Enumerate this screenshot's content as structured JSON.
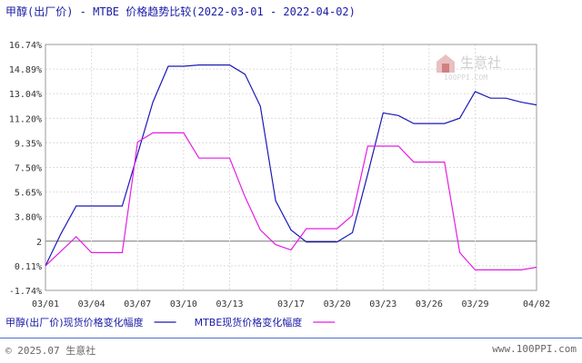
{
  "page": {
    "title": "甲醇(出厂价) - MTBE 价格趋势比较(2022-03-01 - 2022-04-02)",
    "footer_left": "© 2025.07 生意社",
    "footer_right": "www.100PPI.com",
    "watermark_text": "生意社",
    "watermark_sub": "100PPI.COM"
  },
  "chart_data": {
    "type": "line",
    "title": "甲醇(出厂价) - MTBE 价格趋势比较(2022-03-01 - 2022-04-02)",
    "xlabel": "",
    "ylabel": "",
    "x_ticks": [
      "03/01",
      "03/04",
      "03/07",
      "03/10",
      "03/13",
      "03/17",
      "03/20",
      "03/23",
      "03/26",
      "03/29",
      "04/02"
    ],
    "y_ticks": [
      "16.74%",
      "14.89%",
      "13.04%",
      "11.20%",
      "9.35%",
      "7.50%",
      "5.65%",
      "3.80%",
      "2",
      "0.11%",
      "-1.74%"
    ],
    "ylim": [
      -1.74,
      16.74
    ],
    "reference_line": 2,
    "grid": true,
    "legend_position": "bottom-left",
    "series": [
      {
        "name": "甲醇(出厂价)现货价格变化幅度",
        "color": "#1a1ab5",
        "points": [
          [
            "03/01",
            0.11
          ],
          [
            "03/02",
            2.5
          ],
          [
            "03/03",
            4.6
          ],
          [
            "03/04",
            4.6
          ],
          [
            "03/05",
            4.6
          ],
          [
            "03/06",
            4.6
          ],
          [
            "03/07",
            8.5
          ],
          [
            "03/08",
            12.4
          ],
          [
            "03/09",
            15.1
          ],
          [
            "03/10",
            15.1
          ],
          [
            "03/11",
            15.2
          ],
          [
            "03/12",
            15.2
          ],
          [
            "03/13",
            15.2
          ],
          [
            "03/14",
            14.5
          ],
          [
            "03/15",
            12.1
          ],
          [
            "03/16",
            5.0
          ],
          [
            "03/17",
            2.8
          ],
          [
            "03/18",
            1.9
          ],
          [
            "03/19",
            1.9
          ],
          [
            "03/20",
            1.9
          ],
          [
            "03/21",
            2.6
          ],
          [
            "03/22",
            7.0
          ],
          [
            "03/23",
            11.6
          ],
          [
            "03/24",
            11.4
          ],
          [
            "03/25",
            10.8
          ],
          [
            "03/26",
            10.8
          ],
          [
            "03/27",
            10.8
          ],
          [
            "03/28",
            11.2
          ],
          [
            "03/29",
            13.2
          ],
          [
            "03/30",
            12.7
          ],
          [
            "03/31",
            12.7
          ],
          [
            "04/01",
            12.4
          ],
          [
            "04/02",
            12.2
          ]
        ]
      },
      {
        "name": "MTBE现货价格变化幅度",
        "color": "#e31ee3",
        "points": [
          [
            "03/01",
            0.11
          ],
          [
            "03/02",
            1.2
          ],
          [
            "03/03",
            2.3
          ],
          [
            "03/04",
            1.1
          ],
          [
            "03/05",
            1.1
          ],
          [
            "03/06",
            1.1
          ],
          [
            "03/07",
            9.4
          ],
          [
            "03/08",
            10.1
          ],
          [
            "03/09",
            10.1
          ],
          [
            "03/10",
            10.1
          ],
          [
            "03/11",
            8.2
          ],
          [
            "03/12",
            8.2
          ],
          [
            "03/13",
            8.2
          ],
          [
            "03/14",
            5.3
          ],
          [
            "03/15",
            2.8
          ],
          [
            "03/16",
            1.7
          ],
          [
            "03/17",
            1.3
          ],
          [
            "03/18",
            2.9
          ],
          [
            "03/19",
            2.9
          ],
          [
            "03/20",
            2.9
          ],
          [
            "03/21",
            3.9
          ],
          [
            "03/22",
            9.1
          ],
          [
            "03/23",
            9.1
          ],
          [
            "03/24",
            9.1
          ],
          [
            "03/25",
            7.9
          ],
          [
            "03/26",
            7.9
          ],
          [
            "03/27",
            7.9
          ],
          [
            "03/28",
            1.1
          ],
          [
            "03/29",
            -0.2
          ],
          [
            "03/30",
            -0.2
          ],
          [
            "03/31",
            -0.2
          ],
          [
            "04/01",
            -0.2
          ],
          [
            "04/02",
            0.0
          ]
        ]
      }
    ]
  }
}
